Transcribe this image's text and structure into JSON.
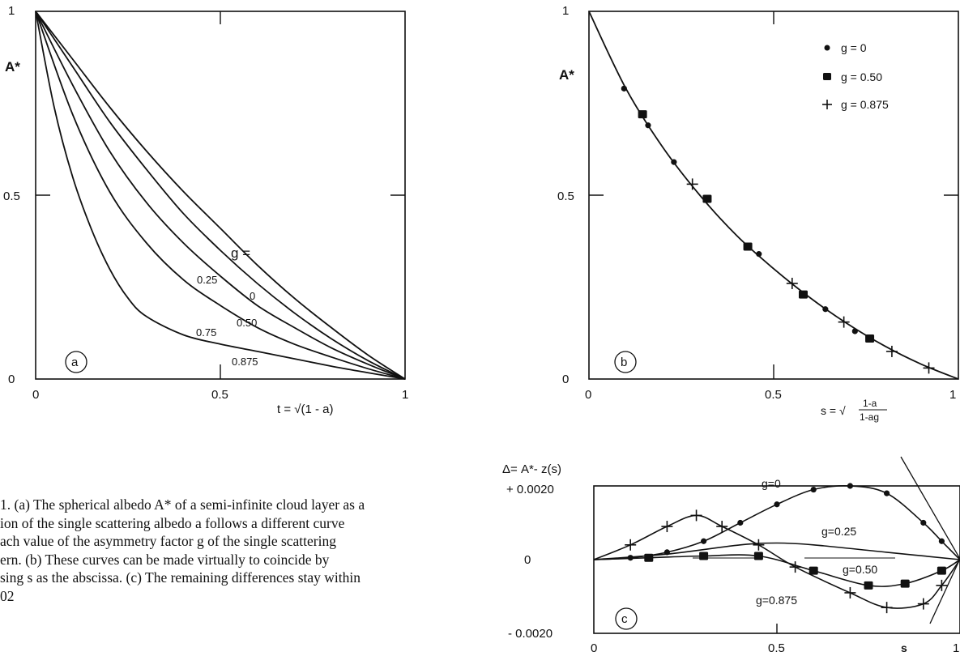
{
  "panels": {
    "a": {
      "label": "a",
      "ylabel": "A*",
      "xlabel": "t = √(1 - a)",
      "ytick_labels": [
        "1",
        "0.5",
        "0"
      ],
      "xtick_labels": [
        "0",
        "0.5",
        "1"
      ],
      "g_header": "g ="
    },
    "b": {
      "label": "b",
      "ylabel": "A*",
      "xlabel_prefix": "s = √",
      "xlabel_num": "1-a",
      "xlabel_den": "1-ag",
      "ytick_labels": [
        "1",
        "0.5",
        "0"
      ],
      "xtick_labels": [
        "0",
        "0.5",
        "1"
      ],
      "legend": [
        "g = 0",
        "g = 0.50",
        "g = 0.875"
      ]
    },
    "c": {
      "label": "c",
      "ylabel": "Δ=  A*- z(s)",
      "xlabel": "s",
      "ytick_labels": [
        "+ 0.0020",
        "0",
        "- 0.0020"
      ],
      "xtick_labels": [
        "0",
        "0.5",
        "1"
      ]
    }
  },
  "caption": {
    "line1": "1. (a) The spherical albedo A* of a semi-infinite cloud layer as a",
    "line2": "ion of the single scattering albedo a follows a different curve",
    "line3": "ach value of the asymmetry factor g of the single scattering",
    "line4": "ern. (b) These curves can be made virtually to coincide by",
    "line5": "sing s as the abscissa. (c) The remaining differences stay within",
    "line6": "02"
  },
  "chart_data": [
    {
      "panel": "a",
      "type": "line",
      "xlabel": "t = √(1 - a)",
      "ylabel": "A*",
      "xlim": [
        0,
        1
      ],
      "ylim": [
        0,
        1
      ],
      "series": [
        {
          "name": "0",
          "x": [
            0,
            0.1,
            0.2,
            0.3,
            0.4,
            0.5,
            0.6,
            0.7,
            0.8,
            0.9,
            1.0
          ],
          "y": [
            1.0,
            0.87,
            0.74,
            0.62,
            0.51,
            0.41,
            0.31,
            0.22,
            0.14,
            0.065,
            0
          ]
        },
        {
          "name": "0.25",
          "x": [
            0,
            0.1,
            0.2,
            0.3,
            0.4,
            0.5,
            0.6,
            0.7,
            0.8,
            0.9,
            1.0
          ],
          "y": [
            1.0,
            0.85,
            0.7,
            0.57,
            0.45,
            0.35,
            0.26,
            0.18,
            0.11,
            0.05,
            0
          ]
        },
        {
          "name": "0.50",
          "x": [
            0,
            0.1,
            0.2,
            0.3,
            0.4,
            0.5,
            0.6,
            0.7,
            0.8,
            0.9,
            1.0
          ],
          "y": [
            1.0,
            0.8,
            0.62,
            0.48,
            0.37,
            0.28,
            0.2,
            0.14,
            0.085,
            0.04,
            0
          ]
        },
        {
          "name": "0.75",
          "x": [
            0,
            0.1,
            0.2,
            0.3,
            0.4,
            0.5,
            0.6,
            0.7,
            0.8,
            0.9,
            1.0
          ],
          "y": [
            1.0,
            0.72,
            0.51,
            0.37,
            0.27,
            0.2,
            0.14,
            0.095,
            0.06,
            0.028,
            0
          ]
        },
        {
          "name": "0.875",
          "x": [
            0,
            0.05,
            0.1,
            0.15,
            0.2,
            0.25,
            0.3,
            0.4,
            0.5,
            0.6,
            0.7,
            0.8,
            0.9,
            1.0
          ],
          "y": [
            1.0,
            0.74,
            0.55,
            0.41,
            0.3,
            0.22,
            0.17,
            0.12,
            0.095,
            0.075,
            0.055,
            0.035,
            0.017,
            0
          ]
        }
      ],
      "annotations": [
        "g =",
        "0.25",
        "0",
        "0.50",
        "0.75",
        "0.875",
        "a"
      ]
    },
    {
      "panel": "b",
      "type": "scatter",
      "xlabel": "s = √((1-a)/(1-ag))",
      "ylabel": "A*",
      "xlim": [
        0,
        1
      ],
      "ylim": [
        0,
        1
      ],
      "curve": {
        "x": [
          0,
          0.1,
          0.2,
          0.3,
          0.4,
          0.5,
          0.6,
          0.7,
          0.8,
          0.9,
          1.0
        ],
        "y": [
          1.0,
          0.79,
          0.63,
          0.5,
          0.39,
          0.3,
          0.22,
          0.15,
          0.09,
          0.04,
          0
        ]
      },
      "series": [
        {
          "name": "g = 0",
          "marker": "dot",
          "x": [
            0.095,
            0.16,
            0.23,
            0.46,
            0.64,
            0.72
          ],
          "y": [
            0.79,
            0.69,
            0.59,
            0.34,
            0.19,
            0.13
          ]
        },
        {
          "name": "g = 0.50",
          "marker": "square",
          "x": [
            0.145,
            0.32,
            0.43,
            0.58,
            0.76
          ],
          "y": [
            0.72,
            0.49,
            0.36,
            0.23,
            0.11
          ]
        },
        {
          "name": "g = 0.875",
          "marker": "plus",
          "x": [
            0.28,
            0.55,
            0.69,
            0.82,
            0.92
          ],
          "y": [
            0.53,
            0.26,
            0.155,
            0.075,
            0.03
          ]
        }
      ],
      "legend_position": "top-right",
      "annotations": [
        "b"
      ]
    },
    {
      "panel": "c",
      "type": "line",
      "xlabel": "s",
      "ylabel": "Δ=  A*- z(s)",
      "xlim": [
        0,
        1
      ],
      "ylim": [
        -0.002,
        0.002
      ],
      "series": [
        {
          "name": "g=0",
          "marker": "dot",
          "x": [
            0,
            0.1,
            0.2,
            0.3,
            0.4,
            0.5,
            0.6,
            0.7,
            0.8,
            0.9,
            0.95,
            1.0
          ],
          "y": [
            0,
            5e-05,
            0.0002,
            0.0005,
            0.001,
            0.0015,
            0.0019,
            0.002,
            0.0018,
            0.001,
            0.0005,
            0
          ]
        },
        {
          "name": "g=0.25",
          "x": [
            0,
            0.2,
            0.4,
            0.5,
            0.6,
            0.8,
            1.0
          ],
          "y": [
            0,
            0.00015,
            0.0004,
            0.00045,
            0.0004,
            0.0002,
            0
          ]
        },
        {
          "name": "g=0.50",
          "marker": "square",
          "x": [
            0,
            0.15,
            0.3,
            0.45,
            0.6,
            0.75,
            0.85,
            0.95,
            1.0
          ],
          "y": [
            0,
            5e-05,
            0.0001,
            0.0001,
            -0.0003,
            -0.0007,
            -0.00065,
            -0.0003,
            0
          ]
        },
        {
          "name": "g=0.875",
          "marker": "plus",
          "x": [
            0,
            0.1,
            0.2,
            0.28,
            0.35,
            0.45,
            0.55,
            0.7,
            0.8,
            0.9,
            0.95,
            1.0
          ],
          "y": [
            0,
            0.0004,
            0.0009,
            0.0012,
            0.0009,
            0.0004,
            -0.0002,
            -0.0009,
            -0.0013,
            -0.0012,
            -0.0007,
            0
          ]
        }
      ],
      "annotations": [
        "g=0",
        "g=0.25",
        "g=0.50",
        "g=0.875",
        "c"
      ]
    }
  ]
}
